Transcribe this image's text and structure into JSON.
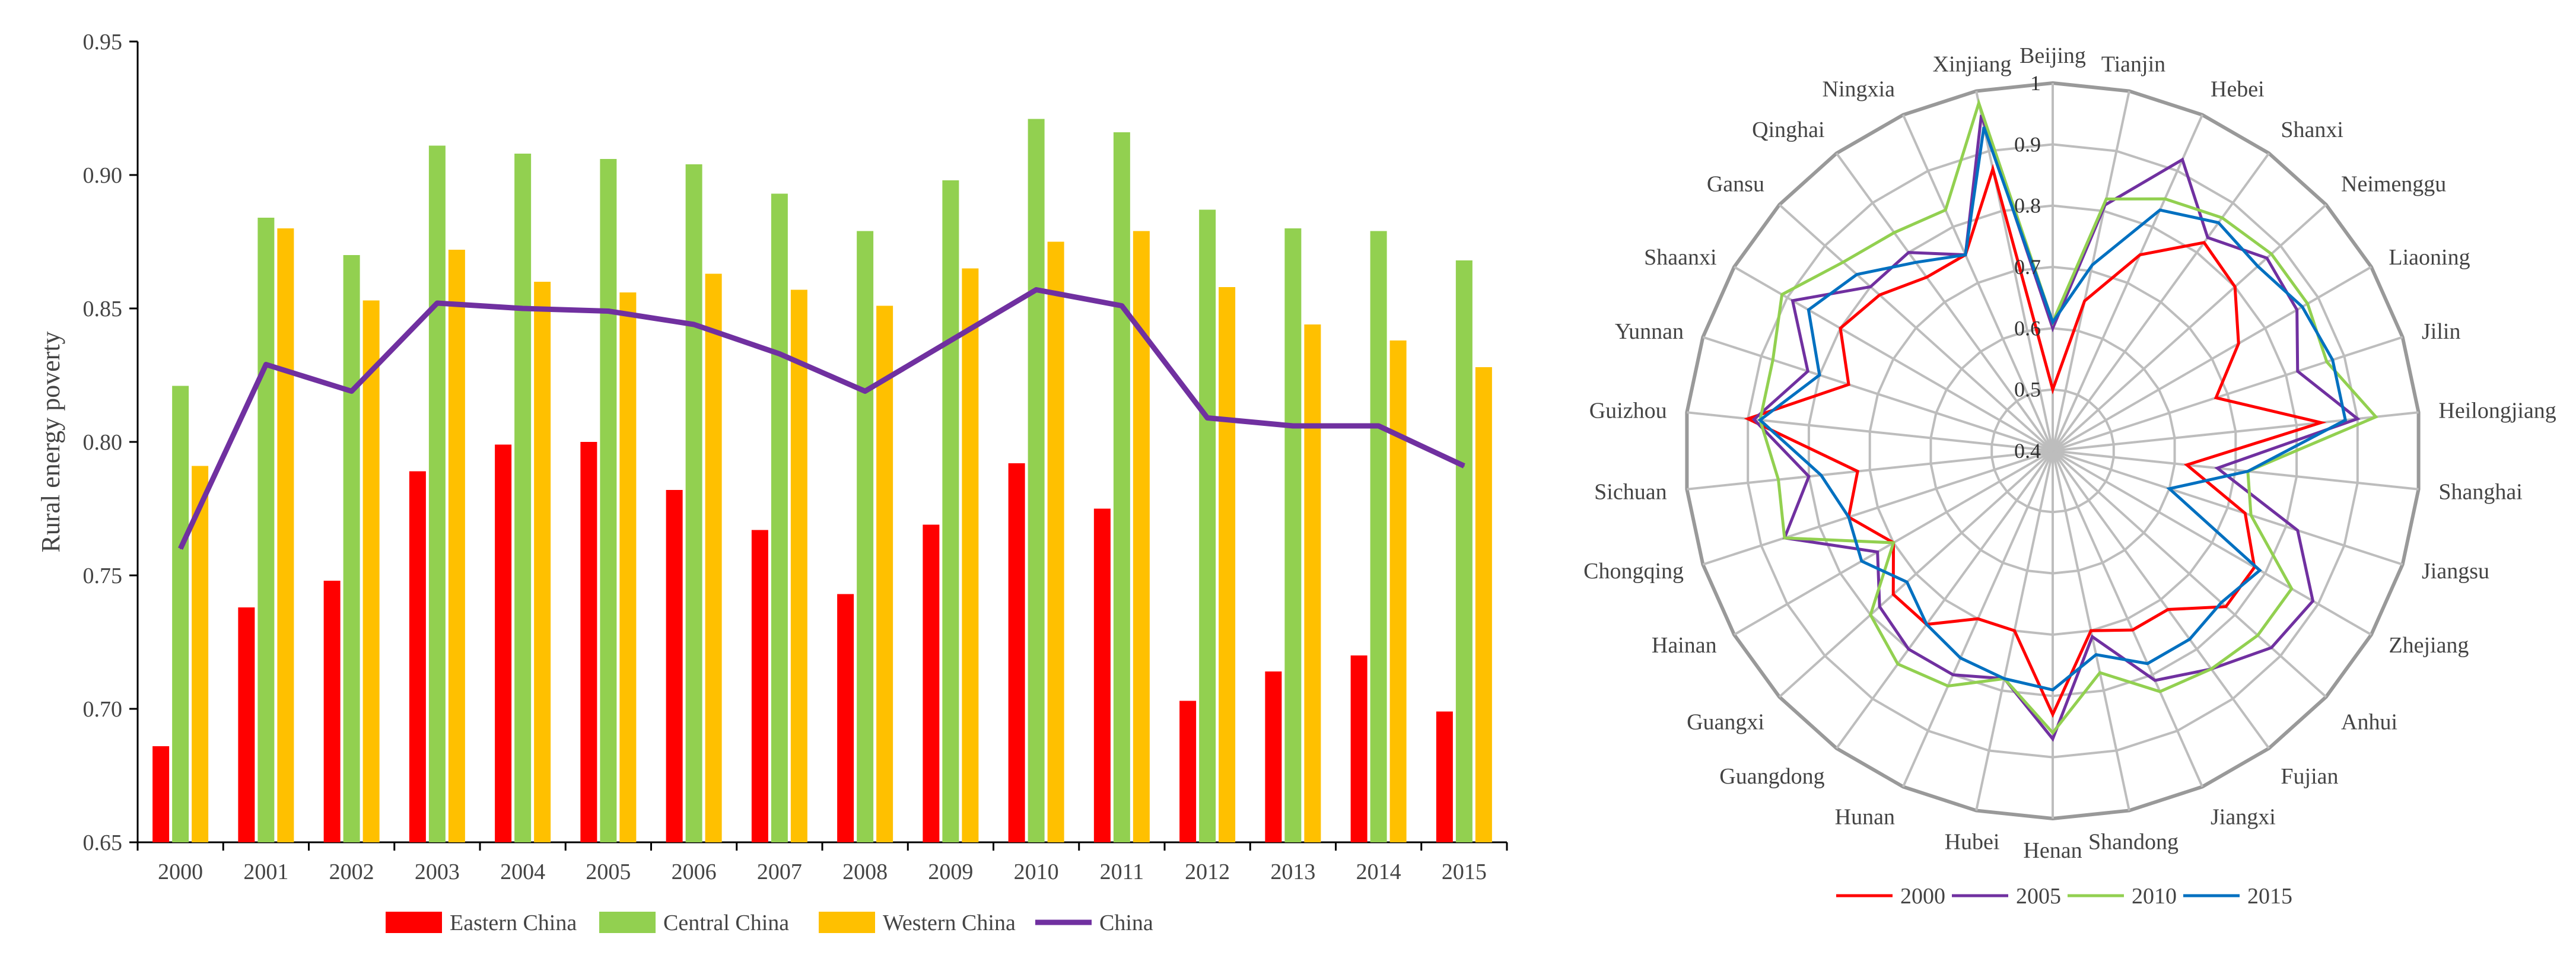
{
  "chart_data": [
    {
      "type": "bar",
      "ylabel": "Rural energy poverty",
      "xlabel": "",
      "ylim": [
        0.65,
        0.95
      ],
      "yticks": [
        "0.65",
        "0.70",
        "0.75",
        "0.80",
        "0.85",
        "0.90",
        "0.95"
      ],
      "categories": [
        "2000",
        "2001",
        "2002",
        "2003",
        "2004",
        "2005",
        "2006",
        "2007",
        "2008",
        "2009",
        "2010",
        "2011",
        "2012",
        "2013",
        "2014",
        "2015"
      ],
      "series": [
        {
          "name": "Eastern China",
          "kind": "bar",
          "color": "#ff0000",
          "values": [
            0.686,
            0.738,
            0.748,
            0.789,
            0.799,
            0.8,
            0.782,
            0.767,
            0.743,
            0.769,
            0.792,
            0.775,
            0.703,
            0.714,
            0.72,
            0.699
          ]
        },
        {
          "name": "Central China",
          "kind": "bar",
          "color": "#92d050",
          "values": [
            0.821,
            0.884,
            0.87,
            0.911,
            0.908,
            0.906,
            0.904,
            0.893,
            0.879,
            0.898,
            0.921,
            0.916,
            0.887,
            0.88,
            0.879,
            0.868
          ]
        },
        {
          "name": "Western China",
          "kind": "bar",
          "color": "#ffc000",
          "values": [
            0.791,
            0.88,
            0.853,
            0.872,
            0.86,
            0.856,
            0.863,
            0.857,
            0.851,
            0.865,
            0.875,
            0.879,
            0.858,
            0.844,
            0.838,
            0.828
          ]
        },
        {
          "name": "China",
          "kind": "line",
          "color": "#7030a0",
          "values": [
            0.76,
            0.829,
            0.819,
            0.852,
            0.85,
            0.849,
            0.844,
            0.833,
            0.819,
            0.838,
            0.857,
            0.851,
            0.809,
            0.806,
            0.806,
            0.791
          ]
        }
      ],
      "legend": "bottom"
    },
    {
      "type": "radar",
      "rlim": [
        0.4,
        1.0
      ],
      "rticks": [
        "0.4",
        "0.5",
        "0.6",
        "0.7",
        "0.8",
        "0.9",
        "1"
      ],
      "axes": [
        "Beijing",
        "Tianjin",
        "Hebei",
        "Shanxi",
        "Neimenggu",
        "Liaoning",
        "Jilin",
        "Heilongjiang",
        "Shanghai",
        "Jiangsu",
        "Zhejiang",
        "Anhui",
        "Fujian",
        "Jiangxi",
        "Shandong",
        "Henan",
        "Hubei",
        "Hunan",
        "Guangdong",
        "Guangxi",
        "Hainan",
        "Chongqing",
        "Sichuan",
        "Guizhou",
        "Yunnan",
        "Shaanxi",
        "Gansu",
        "Qinghai",
        "Ningxia",
        "Xinjiang"
      ],
      "series": [
        {
          "name": "2000",
          "color": "#ff0000",
          "values": [
            0.5,
            0.65,
            0.75,
            0.82,
            0.8,
            0.75,
            0.68,
            0.84,
            0.62,
            0.73,
            0.78,
            0.78,
            0.72,
            0.72,
            0.7,
            0.83,
            0.7,
            0.7,
            0.75,
            0.75,
            0.7,
            0.75,
            0.72,
            0.9,
            0.75,
            0.8,
            0.78,
            0.75,
            0.75,
            0.87
          ]
        },
        {
          "name": "2005",
          "color": "#7030a0",
          "values": [
            0.6,
            0.81,
            0.92,
            0.83,
            0.87,
            0.86,
            0.82,
            0.9,
            0.67,
            0.82,
            0.89,
            0.88,
            0.84,
            0.81,
            0.71,
            0.87,
            0.78,
            0.8,
            0.8,
            0.78,
            0.73,
            0.86,
            0.8,
            0.89,
            0.82,
            0.89,
            0.8,
            0.8,
            0.75,
            0.96
          ]
        },
        {
          "name": "2010",
          "color": "#92d050",
          "values": [
            0.61,
            0.82,
            0.85,
            0.87,
            0.88,
            0.88,
            0.87,
            0.93,
            0.72,
            0.74,
            0.85,
            0.85,
            0.84,
            0.83,
            0.77,
            0.86,
            0.78,
            0.82,
            0.83,
            0.8,
            0.7,
            0.86,
            0.85,
            0.88,
            0.88,
            0.91,
            0.86,
            0.84,
            0.83,
            0.98
          ]
        },
        {
          "name": "2015",
          "color": "#0070c0",
          "values": [
            0.61,
            0.71,
            0.83,
            0.86,
            0.85,
            0.87,
            0.88,
            0.88,
            0.72,
            0.6,
            0.79,
            0.77,
            0.78,
            0.78,
            0.74,
            0.79,
            0.78,
            0.77,
            0.75,
            0.72,
            0.76,
            0.75,
            0.78,
            0.88,
            0.8,
            0.86,
            0.83,
            0.78,
            0.75,
            0.94
          ]
        }
      ],
      "legend": "bottom"
    }
  ]
}
